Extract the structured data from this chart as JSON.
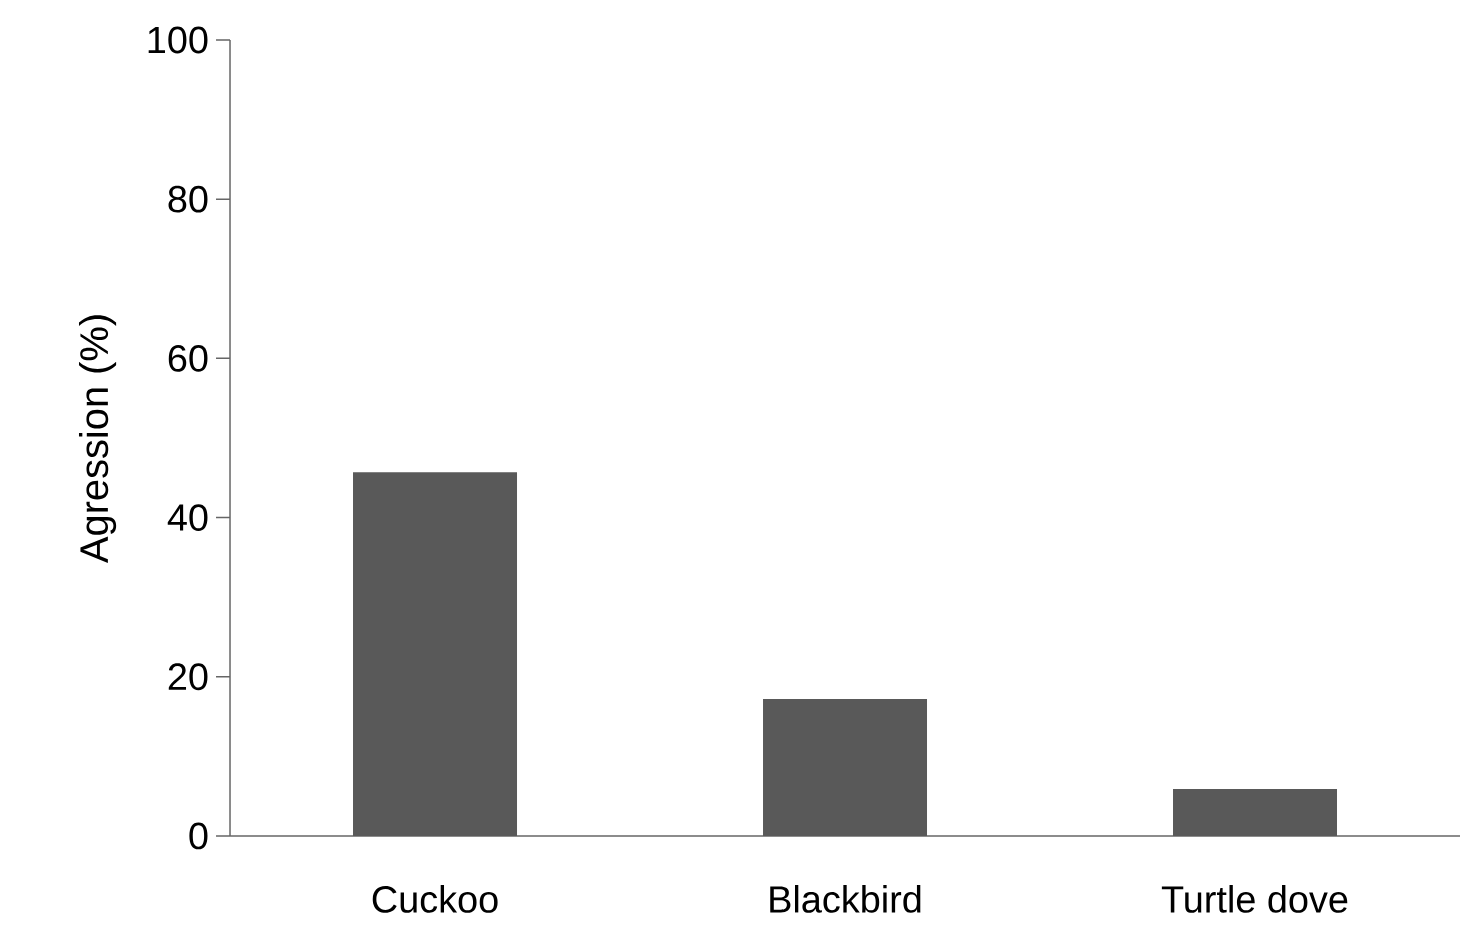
{
  "chart_data": {
    "type": "bar",
    "ylabel": "Agression (%)",
    "categories": [
      "Cuckoo",
      "Blackbird",
      "Turtle dove"
    ],
    "values": [
      45.7,
      17.2,
      5.9
    ],
    "color": "#595959",
    "ylim": [
      0,
      100
    ],
    "yticks": [
      0,
      20,
      40,
      60,
      80,
      100
    ],
    "grid": false
  }
}
